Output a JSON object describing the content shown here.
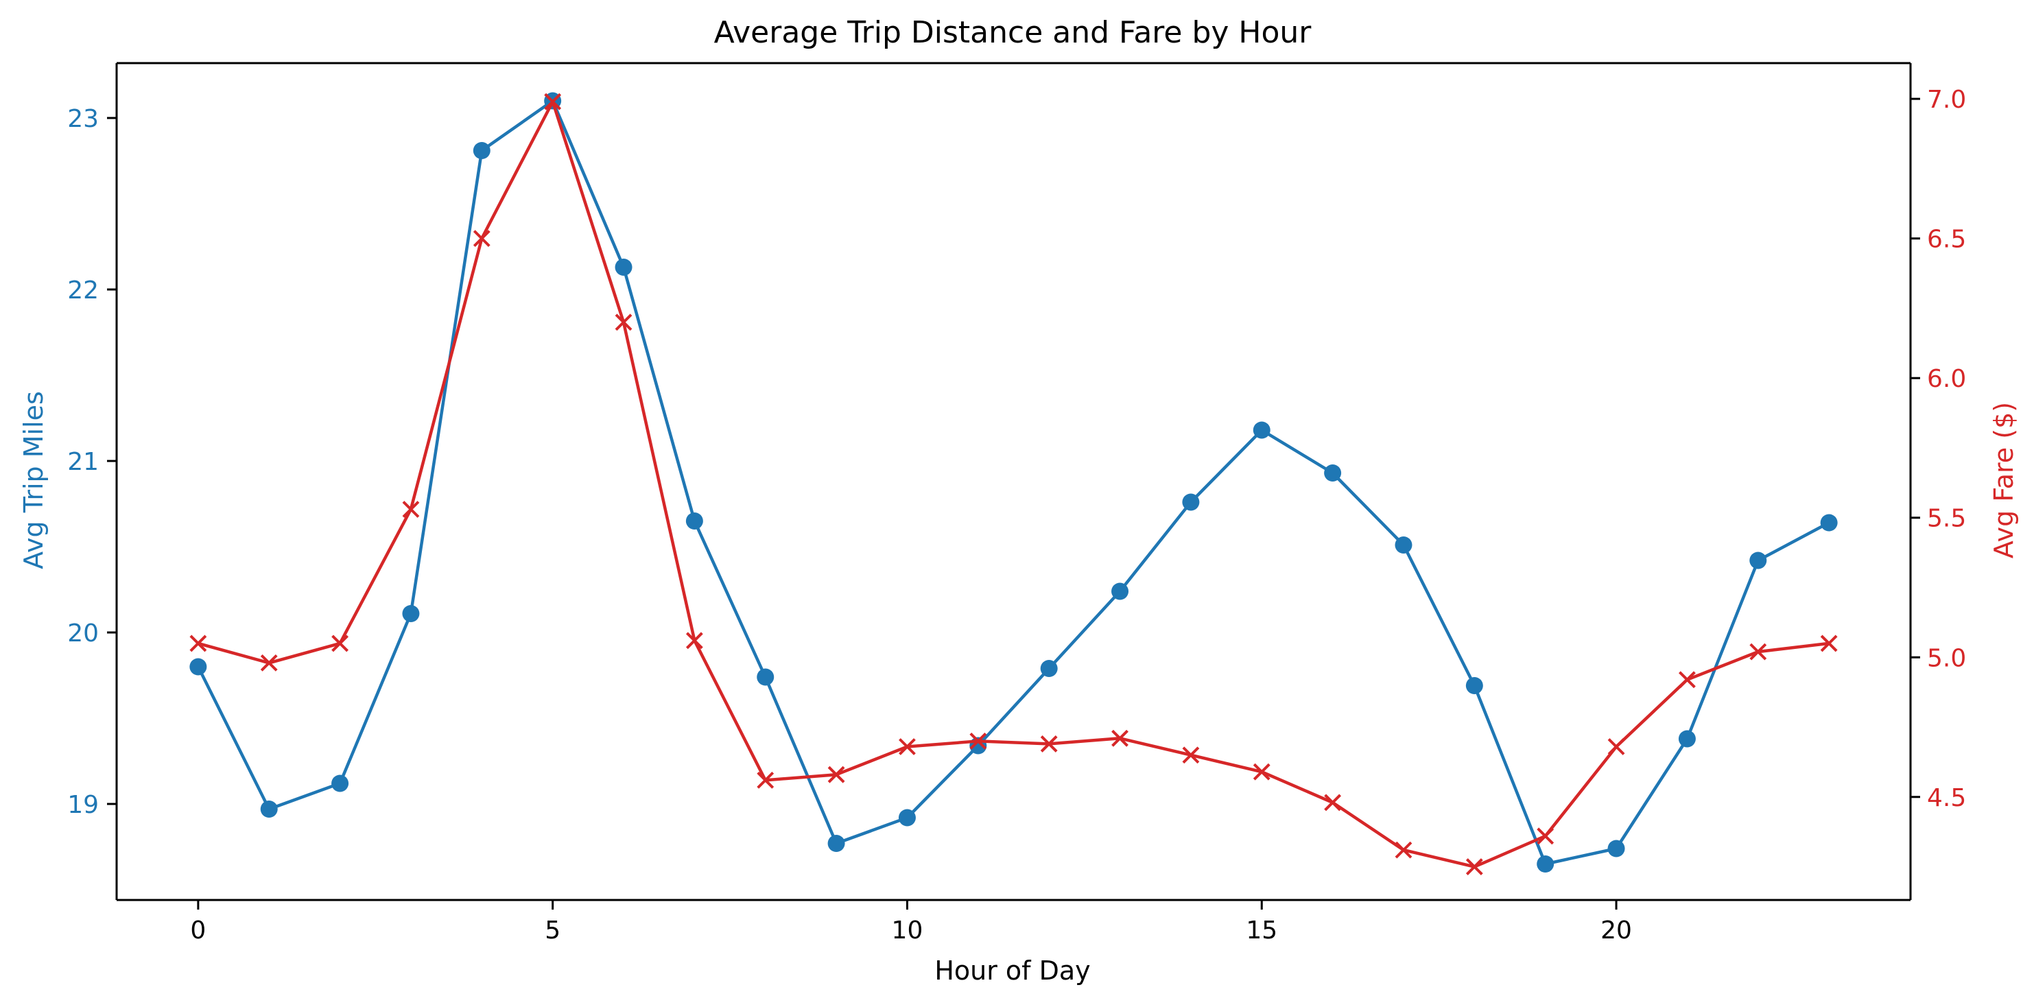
{
  "chart_data": {
    "type": "line",
    "title": "Average Trip Distance and Fare by Hour",
    "xlabel": "Hour of Day",
    "ylabel_left": "Avg Trip Miles",
    "ylabel_right": "Avg Fare ($)",
    "x": [
      0,
      1,
      2,
      3,
      4,
      5,
      6,
      7,
      8,
      9,
      10,
      11,
      12,
      13,
      14,
      15,
      16,
      17,
      18,
      19,
      20,
      21,
      22,
      23
    ],
    "xlim": [
      -1.15,
      24.15
    ],
    "xticks": [
      0,
      5,
      10,
      15,
      20
    ],
    "xtick_labels": [
      "0",
      "5",
      "10",
      "15",
      "20"
    ],
    "ylim_left": [
      18.44,
      23.32
    ],
    "yticks_left": [
      19,
      20,
      21,
      22,
      23
    ],
    "ytick_labels_left": [
      "19",
      "20",
      "21",
      "22",
      "23"
    ],
    "ylim_right": [
      4.131,
      7.128
    ],
    "yticks_right": [
      4.5,
      5.0,
      5.5,
      6.0,
      6.5,
      7.0
    ],
    "ytick_labels_right": [
      "4.5",
      "5.0",
      "5.5",
      "6.0",
      "6.5",
      "7.0"
    ],
    "grid": false,
    "series": [
      {
        "axis": "left",
        "marker": "circle",
        "color": "#1f77b4",
        "values": [
          19.8,
          18.97,
          19.12,
          20.11,
          22.81,
          23.1,
          22.13,
          20.65,
          19.74,
          18.77,
          18.92,
          19.34,
          19.79,
          20.24,
          20.76,
          21.18,
          20.93,
          20.51,
          19.69,
          18.65,
          18.74,
          19.38,
          20.42,
          20.64
        ]
      },
      {
        "axis": "right",
        "marker": "x",
        "color": "#d62728",
        "values": [
          5.05,
          4.98,
          5.05,
          5.53,
          6.5,
          6.99,
          6.2,
          5.06,
          4.56,
          4.58,
          4.68,
          4.7,
          4.69,
          4.71,
          4.65,
          4.59,
          4.48,
          4.31,
          4.25,
          4.36,
          4.68,
          4.92,
          5.02,
          5.05
        ]
      }
    ],
    "colors": {
      "left_axis": "#1f77b4",
      "right_axis": "#d62728",
      "frame": "#000000"
    }
  }
}
